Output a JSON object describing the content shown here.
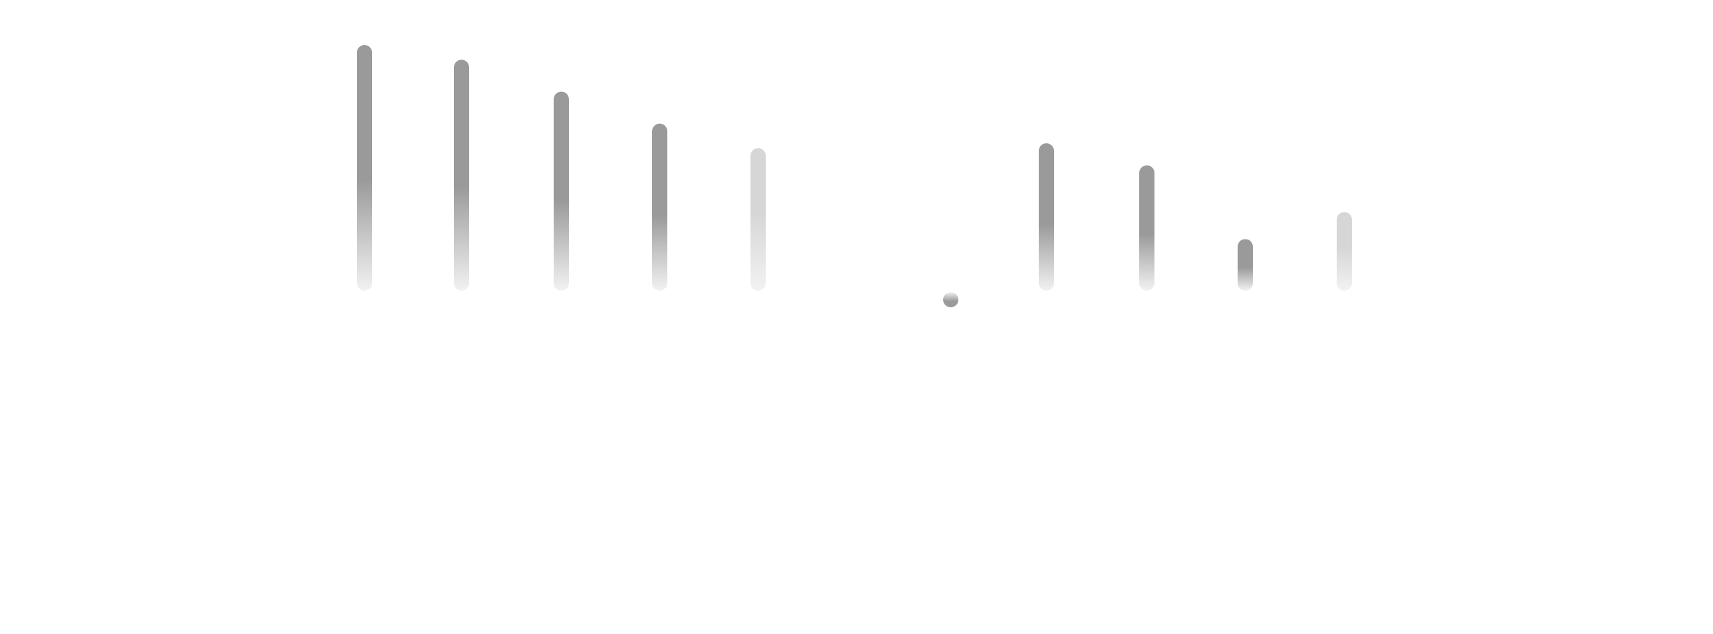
{
  "chart_data": {
    "type": "bar",
    "categories": [
      "",
      "",
      "",
      "",
      "",
      "",
      "",
      "",
      "",
      ""
    ],
    "values": [
      100,
      94,
      81,
      68,
      58,
      -3,
      60,
      51,
      21,
      32
    ],
    "series_styles": [
      "dark",
      "dark",
      "dark",
      "dark",
      "light",
      "dark",
      "dark",
      "dark",
      "dark",
      "light"
    ],
    "colors": {
      "dark": "#9a9a9a",
      "light": "#d6d6d6",
      "fade": "#f2f2f2",
      "background": "#ffffff"
    },
    "title": "",
    "xlabel": "",
    "ylabel": "",
    "ylim": [
      -10,
      110
    ],
    "grid": false,
    "legend": "none"
  }
}
